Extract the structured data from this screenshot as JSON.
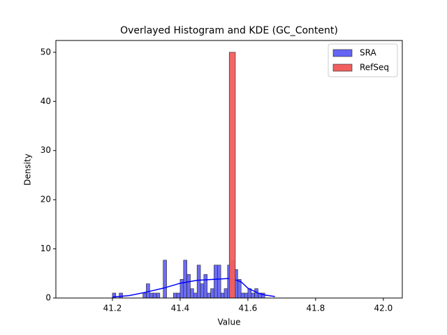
{
  "chart_data": {
    "type": "histogram",
    "title": "Overlayed Histogram and KDE (GC_Content)",
    "x_label": "Value",
    "y_label": "Density",
    "xlim": [
      41.033,
      42.056
    ],
    "ylim": [
      0,
      52.4
    ],
    "xticks": [
      41.2,
      41.4,
      41.6,
      41.8,
      {
        "value": 42,
        "label": "42.0"
      }
    ],
    "yticks": [
      0,
      10,
      20,
      30,
      40,
      50
    ],
    "legend": "upper right",
    "series": [
      {
        "name": "SRA",
        "color": "#6464f5",
        "bins": [
          41.2,
          41.21,
          41.22,
          41.23,
          41.24,
          41.25,
          41.26,
          41.27,
          41.28,
          41.29,
          41.3,
          41.31,
          41.32,
          41.33,
          41.34,
          41.35,
          41.36,
          41.37,
          41.38,
          41.39,
          41.4,
          41.41,
          41.42,
          41.43,
          41.44,
          41.45,
          41.46,
          41.47,
          41.48,
          41.49,
          41.5,
          41.51,
          41.52,
          41.53,
          41.54,
          41.55,
          41.56,
          41.57,
          41.58,
          41.59,
          41.6,
          41.61,
          41.62,
          41.63,
          41.64,
          41.65
        ],
        "counts": [
          1,
          0,
          1,
          0,
          0,
          0,
          0,
          0,
          0,
          1,
          2.9,
          1,
          1,
          1,
          0,
          7.7,
          0,
          0,
          1,
          1,
          3.8,
          7.7,
          4.8,
          1.9,
          1,
          6.7,
          2.9,
          4.8,
          1,
          1.9,
          6.7,
          6.7,
          1,
          1.9,
          6.7,
          7.7,
          5.8,
          3.8,
          1,
          1,
          1.9,
          1,
          1.9,
          1,
          1
        ],
        "kde": {
          "color": "#0000ff",
          "x": [
            41.2,
            41.25,
            41.3,
            41.35,
            41.4,
            41.45,
            41.5,
            41.55,
            41.58,
            41.6,
            41.63,
            41.65,
            41.68
          ],
          "y": [
            0.2,
            0.5,
            1.2,
            2.0,
            3.0,
            3.6,
            3.8,
            4.0,
            3.3,
            2.0,
            1.0,
            0.6,
            0.3
          ]
        }
      },
      {
        "name": "RefSeq",
        "color": "#f25f5f",
        "bins": [
          41.545,
          41.563
        ],
        "counts": [
          50
        ]
      }
    ]
  }
}
